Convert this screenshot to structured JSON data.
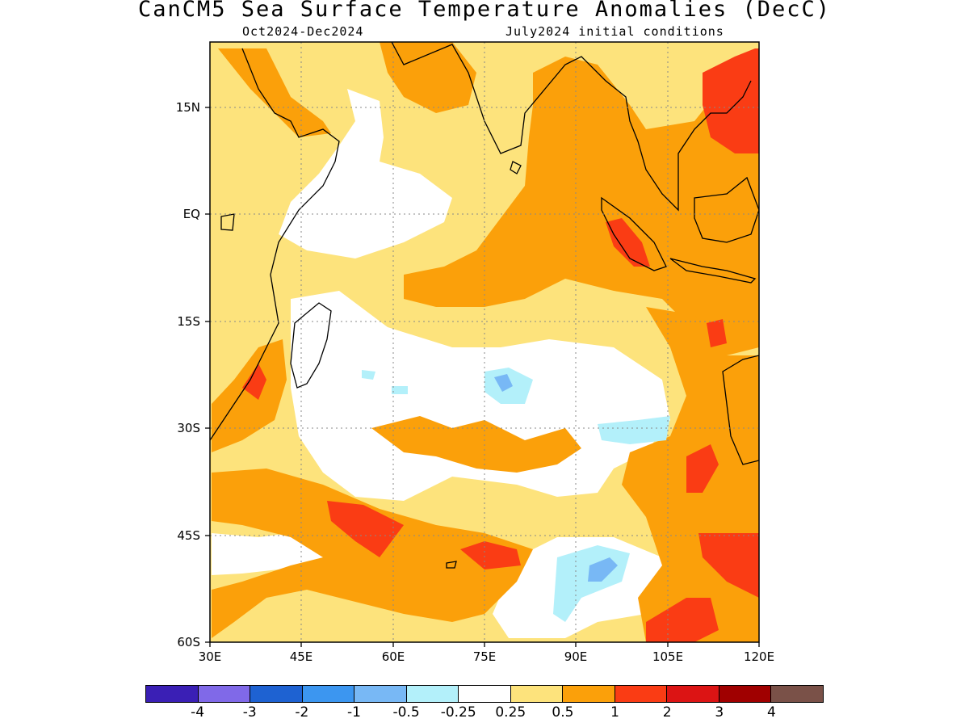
{
  "header": {
    "title": "CanCM5 Sea Surface Temperature Anomalies (DecC)",
    "period": "Oct2024-Dec2024",
    "init": "July2024 initial conditions"
  },
  "axes": {
    "lat_labels": [
      "15N",
      "EQ",
      "15S",
      "30S",
      "45S",
      "60S"
    ],
    "lon_labels": [
      "30E",
      "45E",
      "60E",
      "75E",
      "90E",
      "105E",
      "120E"
    ],
    "lat_values": [
      15,
      0,
      -15,
      -30,
      -45,
      -60
    ],
    "lon_values": [
      30,
      45,
      60,
      75,
      90,
      105,
      120
    ],
    "lat_range": [
      -60,
      24
    ],
    "lon_range": [
      30,
      120
    ]
  },
  "colorbar": {
    "colors": [
      "#3a1fb5",
      "#8069e8",
      "#1e62d2",
      "#3c96f0",
      "#78b8f5",
      "#b3f0fa",
      "#ffffff",
      "#fde37c",
      "#fba00a",
      "#fa3c14",
      "#dc1414",
      "#a00000",
      "#7a5148"
    ],
    "tick_labels": [
      "-4",
      "-3",
      "-2",
      "-1",
      "-0.5",
      "-0.25",
      "0.25",
      "0.5",
      "1",
      "2",
      "3",
      "4"
    ]
  },
  "legend_colors": {
    "warm_weak": "#fde37c",
    "warm_mid": "#fba00a",
    "warm_strong": "#fa3c14",
    "cool_weak": "#b3f0fa",
    "cool_mid": "#78b8f5",
    "ocean_neutral": "#ffffff"
  }
}
